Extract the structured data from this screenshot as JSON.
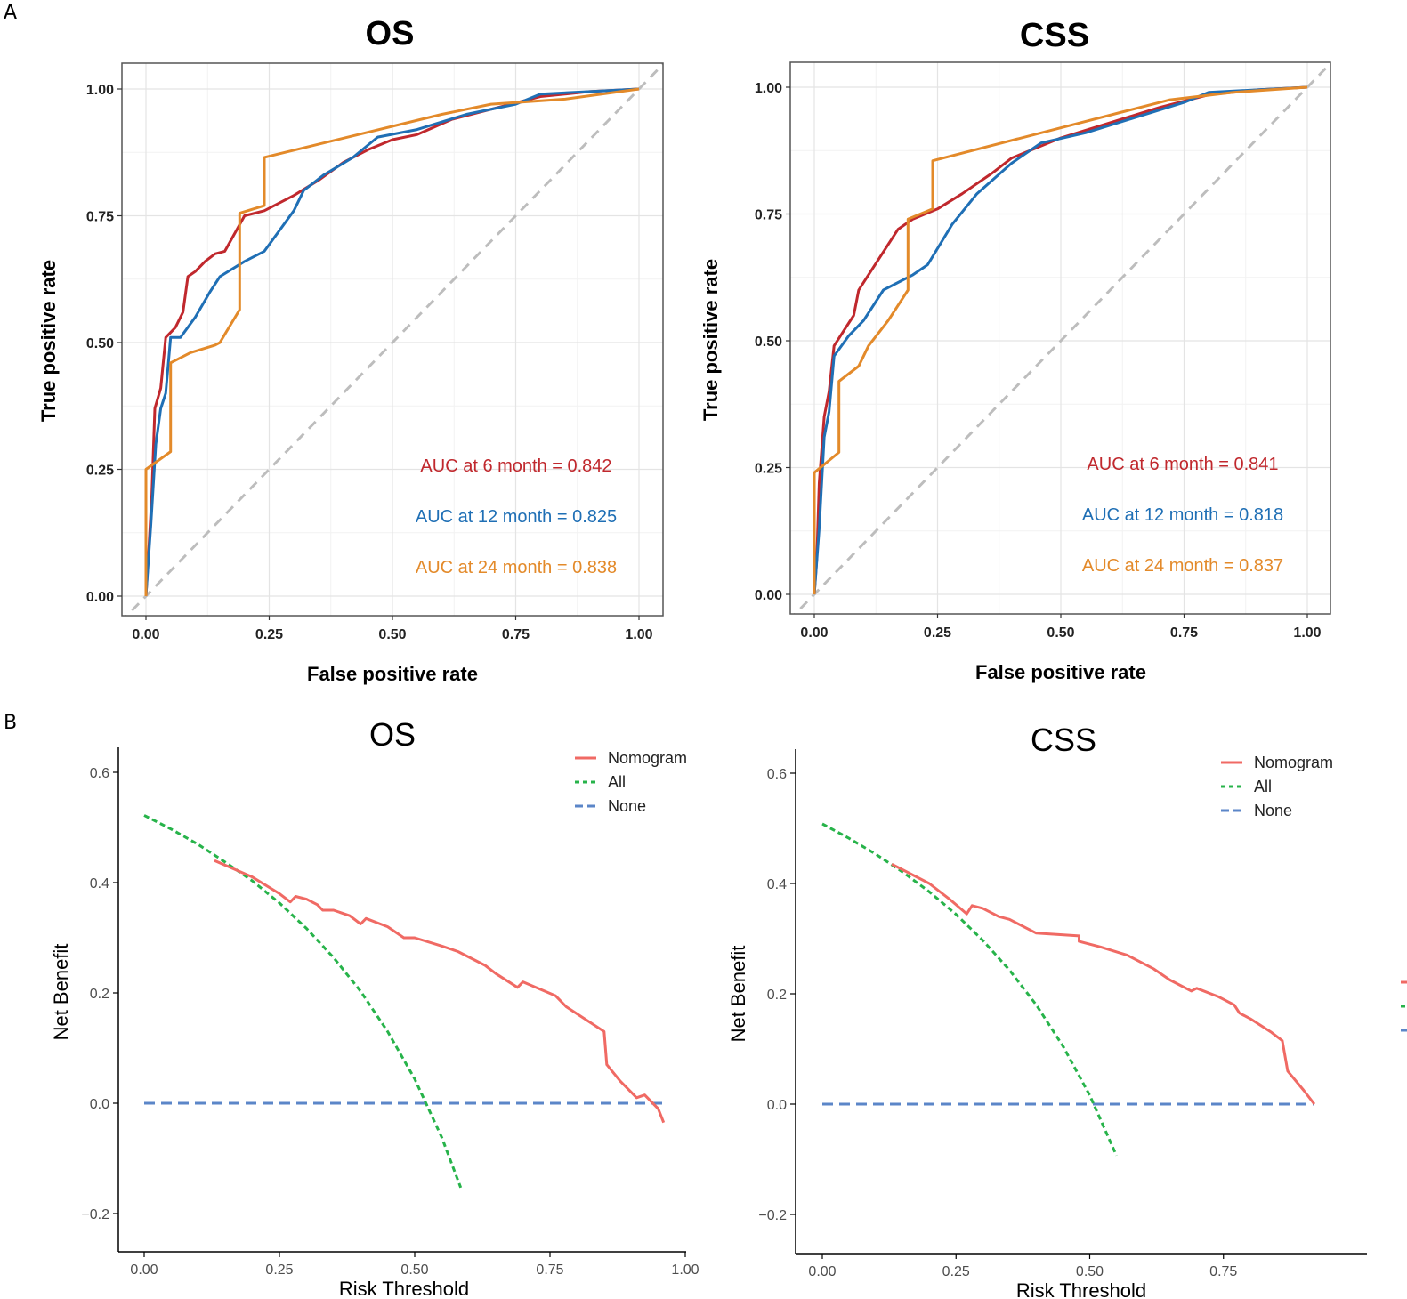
{
  "panels": [
    {
      "label": "A"
    },
    {
      "label": "B"
    }
  ],
  "chart_data": [
    {
      "type": "line",
      "kind": "roc",
      "title": "OS",
      "xlabel": "False positive rate",
      "ylabel": "True positive rate",
      "xlim": [
        0,
        1
      ],
      "ylim": [
        0,
        1
      ],
      "xticks": [
        "0.00",
        "0.25",
        "0.50",
        "0.75",
        "1.00"
      ],
      "yticks": [
        "0.00",
        "0.25",
        "0.50",
        "0.75",
        "1.00"
      ],
      "grid": true,
      "reference_line": "diagonal",
      "series": [
        {
          "name": "6 month",
          "color": "#c0282d",
          "annotation": "AUC at 6 month = 0.842",
          "points": [
            [
              0,
              0
            ],
            [
              0.005,
              0.08
            ],
            [
              0.012,
              0.2
            ],
            [
              0.018,
              0.37
            ],
            [
              0.03,
              0.41
            ],
            [
              0.04,
              0.51
            ],
            [
              0.06,
              0.53
            ],
            [
              0.075,
              0.56
            ],
            [
              0.085,
              0.63
            ],
            [
              0.1,
              0.64
            ],
            [
              0.12,
              0.66
            ],
            [
              0.14,
              0.675
            ],
            [
              0.16,
              0.68
            ],
            [
              0.2,
              0.75
            ],
            [
              0.24,
              0.76
            ],
            [
              0.3,
              0.79
            ],
            [
              0.35,
              0.82
            ],
            [
              0.4,
              0.855
            ],
            [
              0.45,
              0.88
            ],
            [
              0.5,
              0.9
            ],
            [
              0.55,
              0.91
            ],
            [
              0.62,
              0.94
            ],
            [
              0.7,
              0.96
            ],
            [
              0.8,
              0.985
            ],
            [
              0.9,
              0.995
            ],
            [
              1,
              1
            ]
          ]
        },
        {
          "name": "12 month",
          "color": "#1f6fb5",
          "annotation": "AUC at 12 month = 0.825",
          "points": [
            [
              0,
              0
            ],
            [
              0.01,
              0.14
            ],
            [
              0.02,
              0.3
            ],
            [
              0.03,
              0.37
            ],
            [
              0.04,
              0.4
            ],
            [
              0.05,
              0.51
            ],
            [
              0.07,
              0.51
            ],
            [
              0.1,
              0.55
            ],
            [
              0.13,
              0.6
            ],
            [
              0.15,
              0.63
            ],
            [
              0.2,
              0.66
            ],
            [
              0.24,
              0.68
            ],
            [
              0.3,
              0.76
            ],
            [
              0.32,
              0.8
            ],
            [
              0.36,
              0.83
            ],
            [
              0.42,
              0.865
            ],
            [
              0.47,
              0.905
            ],
            [
              0.55,
              0.92
            ],
            [
              0.65,
              0.95
            ],
            [
              0.75,
              0.97
            ],
            [
              0.8,
              0.99
            ],
            [
              0.9,
              0.995
            ],
            [
              1,
              1
            ]
          ]
        },
        {
          "name": "24 month",
          "color": "#e38a2a",
          "annotation": "AUC at 24 month = 0.838",
          "points": [
            [
              0,
              0
            ],
            [
              0,
              0.25
            ],
            [
              0.05,
              0.285
            ],
            [
              0.05,
              0.46
            ],
            [
              0.09,
              0.48
            ],
            [
              0.14,
              0.495
            ],
            [
              0.15,
              0.5
            ],
            [
              0.19,
              0.565
            ],
            [
              0.19,
              0.755
            ],
            [
              0.24,
              0.77
            ],
            [
              0.24,
              0.865
            ],
            [
              0.6,
              0.95
            ],
            [
              0.7,
              0.97
            ],
            [
              0.85,
              0.98
            ],
            [
              1,
              1
            ]
          ]
        }
      ]
    },
    {
      "type": "line",
      "kind": "roc",
      "title": "CSS",
      "xlabel": "False positive rate",
      "ylabel": "True positive rate",
      "xlim": [
        0,
        1
      ],
      "ylim": [
        0,
        1
      ],
      "xticks": [
        "0.00",
        "0.25",
        "0.50",
        "0.75",
        "1.00"
      ],
      "yticks": [
        "0.00",
        "0.25",
        "0.50",
        "0.75",
        "1.00"
      ],
      "grid": true,
      "reference_line": "diagonal",
      "series": [
        {
          "name": "6 month",
          "color": "#c0282d",
          "annotation": "AUC at 6 month = 0.841",
          "points": [
            [
              0,
              0
            ],
            [
              0.005,
              0.07
            ],
            [
              0.01,
              0.22
            ],
            [
              0.02,
              0.35
            ],
            [
              0.03,
              0.4
            ],
            [
              0.04,
              0.49
            ],
            [
              0.06,
              0.52
            ],
            [
              0.08,
              0.55
            ],
            [
              0.09,
              0.6
            ],
            [
              0.11,
              0.63
            ],
            [
              0.13,
              0.66
            ],
            [
              0.17,
              0.72
            ],
            [
              0.2,
              0.74
            ],
            [
              0.25,
              0.76
            ],
            [
              0.3,
              0.79
            ],
            [
              0.36,
              0.83
            ],
            [
              0.4,
              0.86
            ],
            [
              0.45,
              0.88
            ],
            [
              0.5,
              0.9
            ],
            [
              0.6,
              0.93
            ],
            [
              0.7,
              0.96
            ],
            [
              0.8,
              0.985
            ],
            [
              0.9,
              0.995
            ],
            [
              1,
              1
            ]
          ]
        },
        {
          "name": "12 month",
          "color": "#1f6fb5",
          "annotation": "AUC at 12 month = 0.818",
          "points": [
            [
              0,
              0
            ],
            [
              0.01,
              0.13
            ],
            [
              0.02,
              0.31
            ],
            [
              0.03,
              0.36
            ],
            [
              0.04,
              0.47
            ],
            [
              0.07,
              0.51
            ],
            [
              0.1,
              0.54
            ],
            [
              0.14,
              0.6
            ],
            [
              0.2,
              0.63
            ],
            [
              0.23,
              0.65
            ],
            [
              0.28,
              0.73
            ],
            [
              0.33,
              0.79
            ],
            [
              0.4,
              0.85
            ],
            [
              0.46,
              0.89
            ],
            [
              0.55,
              0.91
            ],
            [
              0.65,
              0.94
            ],
            [
              0.75,
              0.97
            ],
            [
              0.8,
              0.99
            ],
            [
              0.9,
              0.995
            ],
            [
              1,
              1
            ]
          ]
        },
        {
          "name": "24 month",
          "color": "#e38a2a",
          "annotation": "AUC at 24 month = 0.837",
          "points": [
            [
              0,
              0
            ],
            [
              0,
              0.24
            ],
            [
              0.05,
              0.28
            ],
            [
              0.05,
              0.42
            ],
            [
              0.09,
              0.45
            ],
            [
              0.11,
              0.49
            ],
            [
              0.15,
              0.54
            ],
            [
              0.19,
              0.6
            ],
            [
              0.19,
              0.74
            ],
            [
              0.24,
              0.76
            ],
            [
              0.24,
              0.855
            ],
            [
              0.62,
              0.95
            ],
            [
              0.72,
              0.975
            ],
            [
              0.85,
              0.99
            ],
            [
              1,
              1
            ]
          ]
        }
      ]
    },
    {
      "type": "line",
      "kind": "decision_curve",
      "title": "OS",
      "xlabel": "Risk Threshold",
      "ylabel": "Net Benefit",
      "xlim": [
        -0.04,
        1.0
      ],
      "ylim": [
        -0.255,
        0.63
      ],
      "xticks": [
        "0.00",
        "0.25",
        "0.50",
        "0.75",
        "1.00"
      ],
      "yticks": [
        "−0.2",
        "0.0",
        "0.2",
        "0.4",
        "0.6"
      ],
      "grid": false,
      "legend": {
        "position": "top-right",
        "entries": [
          "Nomogram",
          "All",
          "None"
        ]
      },
      "series": [
        {
          "name": "Nomogram",
          "color": "#f06a64",
          "dash": "solid",
          "points": [
            [
              0.13,
              0.44
            ],
            [
              0.2,
              0.41
            ],
            [
              0.25,
              0.38
            ],
            [
              0.27,
              0.365
            ],
            [
              0.28,
              0.375
            ],
            [
              0.3,
              0.37
            ],
            [
              0.32,
              0.36
            ],
            [
              0.33,
              0.35
            ],
            [
              0.35,
              0.35
            ],
            [
              0.38,
              0.34
            ],
            [
              0.4,
              0.325
            ],
            [
              0.41,
              0.335
            ],
            [
              0.45,
              0.32
            ],
            [
              0.48,
              0.3
            ],
            [
              0.5,
              0.3
            ],
            [
              0.55,
              0.285
            ],
            [
              0.58,
              0.275
            ],
            [
              0.63,
              0.25
            ],
            [
              0.65,
              0.235
            ],
            [
              0.69,
              0.21
            ],
            [
              0.7,
              0.22
            ],
            [
              0.76,
              0.195
            ],
            [
              0.78,
              0.175
            ],
            [
              0.85,
              0.13
            ],
            [
              0.855,
              0.07
            ],
            [
              0.88,
              0.04
            ],
            [
              0.9,
              0.02
            ],
            [
              0.91,
              0.01
            ],
            [
              0.925,
              0.015
            ],
            [
              0.95,
              -0.01
            ],
            [
              0.96,
              -0.035
            ]
          ]
        },
        {
          "name": "All",
          "color": "#27b34a",
          "dash": "dotted",
          "points": [
            [
              0,
              0.522
            ],
            [
              0.05,
              0.497
            ],
            [
              0.1,
              0.469
            ],
            [
              0.15,
              0.437
            ],
            [
              0.2,
              0.403
            ],
            [
              0.25,
              0.363
            ],
            [
              0.3,
              0.317
            ],
            [
              0.35,
              0.264
            ],
            [
              0.4,
              0.203
            ],
            [
              0.45,
              0.13
            ],
            [
              0.5,
              0.044
            ],
            [
              0.55,
              -0.062
            ],
            [
              0.585,
              -0.153
            ]
          ]
        },
        {
          "name": "None",
          "color": "#5b86c8",
          "dash": "dashed",
          "points": [
            [
              0,
              0
            ],
            [
              0.96,
              0
            ]
          ]
        }
      ]
    },
    {
      "type": "line",
      "kind": "decision_curve",
      "title": "CSS",
      "xlabel": "Risk Threshold",
      "ylabel": "Net Benefit",
      "xlim": [
        -0.04,
        1.0
      ],
      "ylim": [
        -0.255,
        0.63
      ],
      "xticks": [
        "0.00",
        "0.25",
        "0.50",
        "0.75"
      ],
      "yticks": [
        "−0.2",
        "0.0",
        "0.2",
        "0.4",
        "0.6"
      ],
      "grid": false,
      "legend": {
        "position": "top-right",
        "entries": [
          "Nomogram",
          "All",
          "None"
        ]
      },
      "series": [
        {
          "name": "Nomogram",
          "color": "#f06a64",
          "dash": "solid",
          "points": [
            [
              0.13,
              0.435
            ],
            [
              0.2,
              0.4
            ],
            [
              0.24,
              0.37
            ],
            [
              0.27,
              0.345
            ],
            [
              0.28,
              0.36
            ],
            [
              0.3,
              0.355
            ],
            [
              0.33,
              0.34
            ],
            [
              0.35,
              0.335
            ],
            [
              0.4,
              0.31
            ],
            [
              0.48,
              0.305
            ],
            [
              0.48,
              0.295
            ],
            [
              0.52,
              0.285
            ],
            [
              0.57,
              0.27
            ],
            [
              0.62,
              0.245
            ],
            [
              0.65,
              0.225
            ],
            [
              0.69,
              0.205
            ],
            [
              0.7,
              0.21
            ],
            [
              0.74,
              0.195
            ],
            [
              0.77,
              0.18
            ],
            [
              0.78,
              0.165
            ],
            [
              0.8,
              0.155
            ],
            [
              0.84,
              0.13
            ],
            [
              0.86,
              0.115
            ],
            [
              0.87,
              0.06
            ],
            [
              0.9,
              0.025
            ],
            [
              0.92,
              0.0
            ]
          ]
        },
        {
          "name": "All",
          "color": "#27b34a",
          "dash": "dotted",
          "points": [
            [
              0,
              0.508
            ],
            [
              0.05,
              0.482
            ],
            [
              0.1,
              0.453
            ],
            [
              0.15,
              0.421
            ],
            [
              0.2,
              0.385
            ],
            [
              0.25,
              0.344
            ],
            [
              0.3,
              0.297
            ],
            [
              0.35,
              0.243
            ],
            [
              0.4,
              0.18
            ],
            [
              0.45,
              0.105
            ],
            [
              0.5,
              0.016
            ],
            [
              0.55,
              -0.093
            ]
          ]
        },
        {
          "name": "None",
          "color": "#5b86c8",
          "dash": "dashed",
          "points": [
            [
              0,
              0
            ],
            [
              0.92,
              0
            ]
          ]
        }
      ]
    }
  ]
}
